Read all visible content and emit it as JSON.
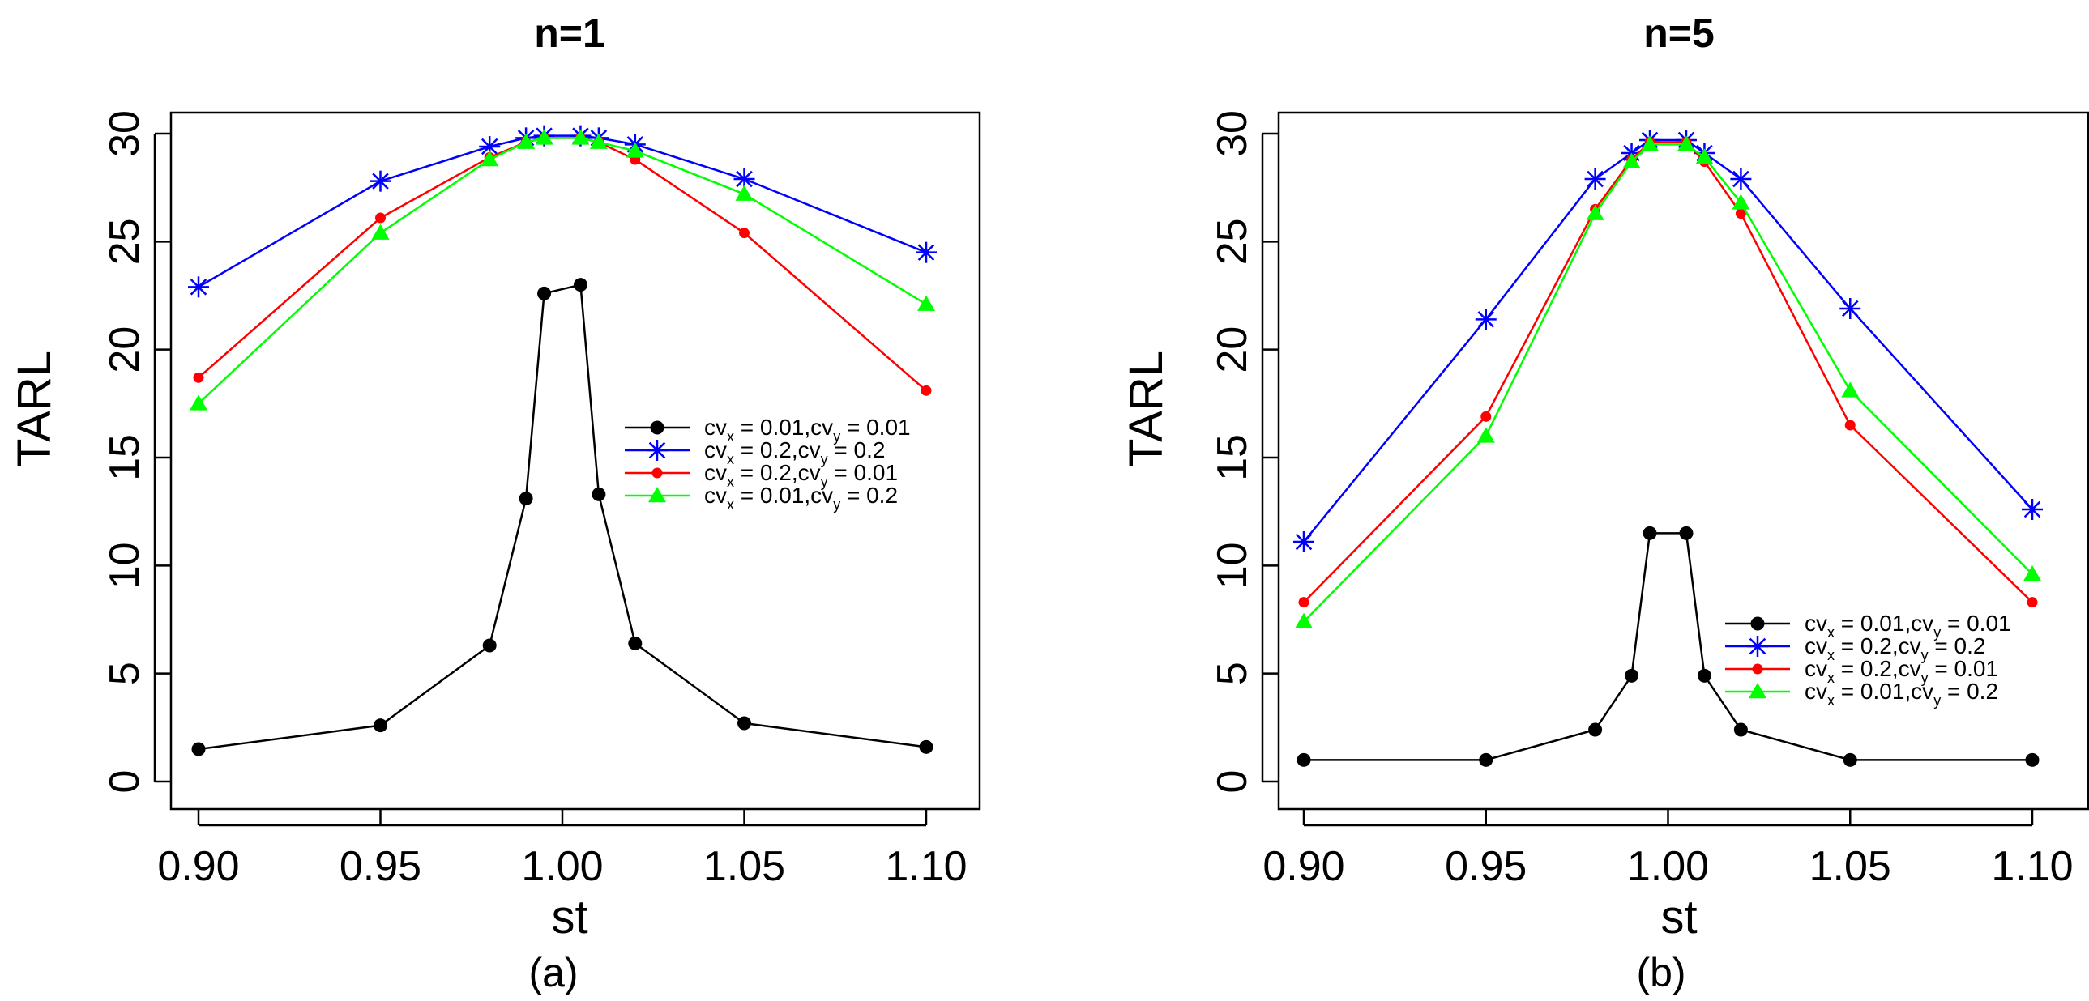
{
  "chart_data": [
    {
      "type": "line",
      "title": "n=1",
      "xlabel": "st",
      "ylabel": "TARL",
      "caption": "(a)",
      "xlim": [
        0.9,
        1.1
      ],
      "ylim": [
        0,
        30
      ],
      "x_ticks": [
        "0.90",
        "0.95",
        "1.00",
        "1.05",
        "1.10"
      ],
      "y_ticks": [
        "0",
        "5",
        "10",
        "15",
        "20",
        "25",
        "30"
      ],
      "legend_position": "right-middle",
      "x": [
        0.9,
        0.95,
        0.98,
        0.99,
        0.995,
        1.005,
        1.01,
        1.02,
        1.05,
        1.1
      ],
      "series": [
        {
          "name": "cvx = 0.01,cvy = 0.01",
          "sub1": "x",
          "sub2": "y",
          "pre1": "cv",
          "mid": " = 0.01,cv",
          "post": " = 0.01",
          "color": "#000000",
          "marker": "circle",
          "values": [
            1.5,
            2.6,
            6.3,
            13.1,
            22.6,
            23.0,
            13.3,
            6.4,
            2.7,
            1.6
          ]
        },
        {
          "name": "cvx = 0.2,cvy = 0.2",
          "sub1": "x",
          "sub2": "y",
          "pre1": "cv",
          "mid": " = 0.2,cv",
          "post": " = 0.2",
          "color": "#0000ff",
          "marker": "star",
          "values": [
            22.9,
            27.8,
            29.4,
            29.8,
            29.9,
            29.9,
            29.8,
            29.5,
            27.9,
            24.5
          ]
        },
        {
          "name": "cvx = 0.2,cvy = 0.01",
          "sub1": "x",
          "sub2": "y",
          "pre1": "cv",
          "mid": " = 0.2,cv",
          "post": " = 0.01",
          "color": "#ff0000",
          "marker": "diamond",
          "values": [
            18.7,
            26.1,
            28.9,
            29.6,
            29.8,
            29.8,
            29.6,
            28.8,
            25.4,
            18.1
          ]
        },
        {
          "name": "cvx = 0.01,cvy = 0.2",
          "sub1": "x",
          "sub2": "y",
          "pre1": "cv",
          "mid": " = 0.01,cv",
          "post": " = 0.2",
          "color": "#00ff00",
          "marker": "triangle",
          "values": [
            17.5,
            25.4,
            28.8,
            29.6,
            29.8,
            29.8,
            29.6,
            29.2,
            27.2,
            22.1
          ]
        }
      ]
    },
    {
      "type": "line",
      "title": "n=5",
      "xlabel": "st",
      "ylabel": "TARL",
      "caption": "(b)",
      "xlim": [
        0.9,
        1.1
      ],
      "ylim": [
        0,
        30
      ],
      "x_ticks": [
        "0.90",
        "0.95",
        "1.00",
        "1.05",
        "1.10"
      ],
      "y_ticks": [
        "0",
        "5",
        "10",
        "15",
        "20",
        "25",
        "30"
      ],
      "legend_position": "bottom-right",
      "x": [
        0.9,
        0.95,
        0.98,
        0.99,
        0.995,
        1.005,
        1.01,
        1.02,
        1.05,
        1.1
      ],
      "series": [
        {
          "name": "cvx = 0.01,cvy = 0.01",
          "sub1": "x",
          "sub2": "y",
          "pre1": "cv",
          "mid": " = 0.01,cv",
          "post": " = 0.01",
          "color": "#000000",
          "marker": "circle",
          "values": [
            1.0,
            1.0,
            2.4,
            4.9,
            11.5,
            11.5,
            4.9,
            2.4,
            1.0,
            1.0
          ]
        },
        {
          "name": "cvx = 0.2,cvy = 0.2",
          "sub1": "x",
          "sub2": "y",
          "pre1": "cv",
          "mid": " = 0.2,cv",
          "post": " = 0.2",
          "color": "#0000ff",
          "marker": "star",
          "values": [
            11.1,
            21.4,
            27.9,
            29.1,
            29.7,
            29.7,
            29.1,
            27.9,
            21.9,
            12.6
          ]
        },
        {
          "name": "cvx = 0.2,cvy = 0.01",
          "sub1": "x",
          "sub2": "y",
          "pre1": "cv",
          "mid": " = 0.2,cv",
          "post": " = 0.01",
          "color": "#ff0000",
          "marker": "diamond",
          "values": [
            8.3,
            16.9,
            26.5,
            28.8,
            29.6,
            29.6,
            28.7,
            26.3,
            16.5,
            8.3
          ]
        },
        {
          "name": "cvx = 0.01,cvy = 0.2",
          "sub1": "x",
          "sub2": "y",
          "pre1": "cv",
          "mid": " = 0.01,cv",
          "post": " = 0.2",
          "color": "#00ff00",
          "marker": "triangle",
          "values": [
            7.4,
            16.0,
            26.3,
            28.7,
            29.5,
            29.5,
            28.9,
            26.8,
            18.1,
            9.6
          ]
        }
      ]
    }
  ]
}
